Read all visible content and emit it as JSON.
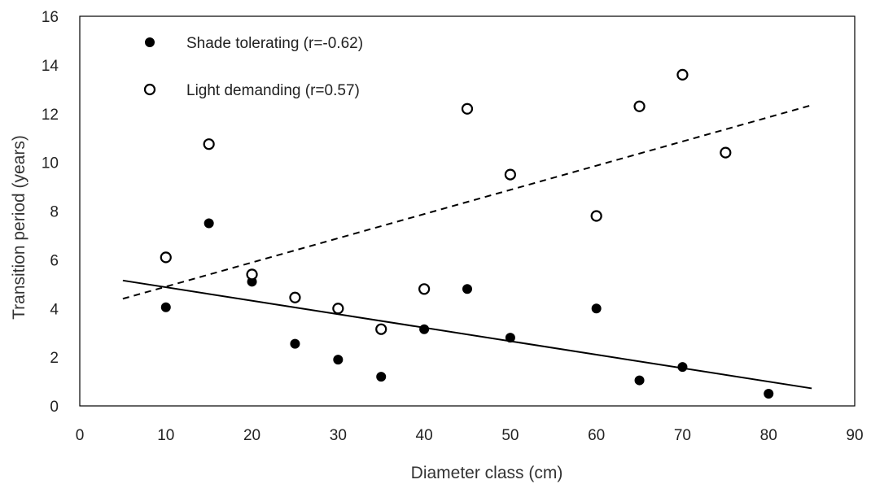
{
  "chart_data": {
    "type": "scatter",
    "xlabel": "Diameter class (cm)",
    "ylabel": "Transition period (years)",
    "xlim": [
      0,
      90
    ],
    "ylim": [
      0,
      16
    ],
    "xticks": [
      0,
      10,
      20,
      30,
      40,
      50,
      60,
      70,
      80,
      90
    ],
    "yticks": [
      0,
      2,
      4,
      6,
      8,
      10,
      12,
      14,
      16
    ],
    "grid": false,
    "legend_position": "top-left",
    "series": [
      {
        "name": "Shade tolerating (r=-0.62)",
        "marker": "filled-circle",
        "color": "#000000",
        "x": [
          10,
          15,
          20,
          25,
          30,
          35,
          40,
          45,
          50,
          60,
          65,
          70,
          80
        ],
        "y": [
          4.05,
          7.5,
          5.1,
          2.55,
          1.9,
          1.2,
          3.15,
          4.8,
          2.8,
          4.0,
          1.05,
          1.6,
          0.5
        ],
        "trendline": {
          "style": "solid",
          "x": [
            5,
            85
          ],
          "y": [
            5.15,
            0.72
          ]
        }
      },
      {
        "name": "Light demanding (r=0.57)",
        "marker": "open-circle",
        "color": "#000000",
        "x": [
          10,
          15,
          20,
          25,
          30,
          35,
          40,
          45,
          50,
          60,
          65,
          70,
          75
        ],
        "y": [
          6.1,
          10.75,
          5.4,
          4.45,
          4.0,
          3.15,
          4.8,
          12.2,
          9.5,
          7.8,
          12.3,
          13.6,
          10.4
        ],
        "trendline": {
          "style": "dashed",
          "x": [
            5,
            85
          ],
          "y": [
            4.4,
            12.35
          ]
        }
      }
    ]
  }
}
